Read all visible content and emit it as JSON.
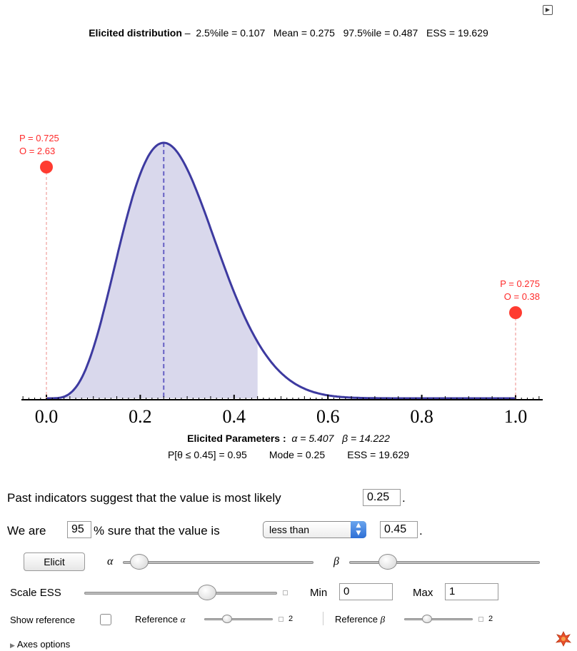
{
  "summary": {
    "label": "Elicited distribution",
    "dash": " –  ",
    "stats": "2.5%ile = 0.107   Mean = 0.275   97.5%ile = 0.487   ESS = 19.629"
  },
  "chart_data": {
    "type": "area",
    "distribution": "beta",
    "alpha": 5.407,
    "beta": 14.222,
    "mode": 0.25,
    "shaded_upper": 0.45,
    "xlim": [
      0,
      1.0
    ],
    "x_ticks": [
      "0.0",
      "0.2",
      "0.4",
      "0.6",
      "0.8",
      "1.0"
    ],
    "markers": [
      {
        "x": 0.0,
        "p_label": "P = 0.725",
        "o_label": "O = 2.63"
      },
      {
        "x": 1.0,
        "p_label": "P = 0.275",
        "o_label": "O = 0.38"
      }
    ],
    "colors": {
      "curve": "#3d3aa0",
      "fill": "#d9d8ec",
      "marker": "#ff3b30"
    }
  },
  "params": {
    "label": "Elicited Parameters :",
    "alpha_text": "α = 5.407",
    "beta_text": "β = 14.222",
    "line2": "P[θ ≤ 0.45] = 0.95        Mode = 0.25        ESS = 19.629"
  },
  "controls": {
    "most_likely_text": "Past indicators suggest that the value is most likely",
    "most_likely_value": "0.25",
    "period": ".",
    "we_are": "We are",
    "sure_value": "95",
    "sure_text": "% sure that the value is",
    "comparison": "less than",
    "bound_value": "0.45",
    "elicit_label": "Elicit",
    "alpha_symbol": "α",
    "beta_symbol": "β",
    "scale_ess_label": "Scale ESS",
    "min_label": "Min",
    "min_value": "0",
    "max_label": "Max",
    "max_value": "1",
    "show_reference_label": "Show reference",
    "ref_alpha_label": "Reference",
    "ref_alpha_value": "2",
    "ref_beta_label": "Reference",
    "ref_beta_value": "2",
    "axes_options_label": "Axes options",
    "sliders": {
      "alpha": 0.04,
      "beta": 0.17,
      "scale_ess": 0.65,
      "ref_alpha": 0.3,
      "ref_beta": 0.3
    }
  },
  "icons": {
    "play": "play-icon",
    "logo": "mathematica-spikey-icon"
  }
}
